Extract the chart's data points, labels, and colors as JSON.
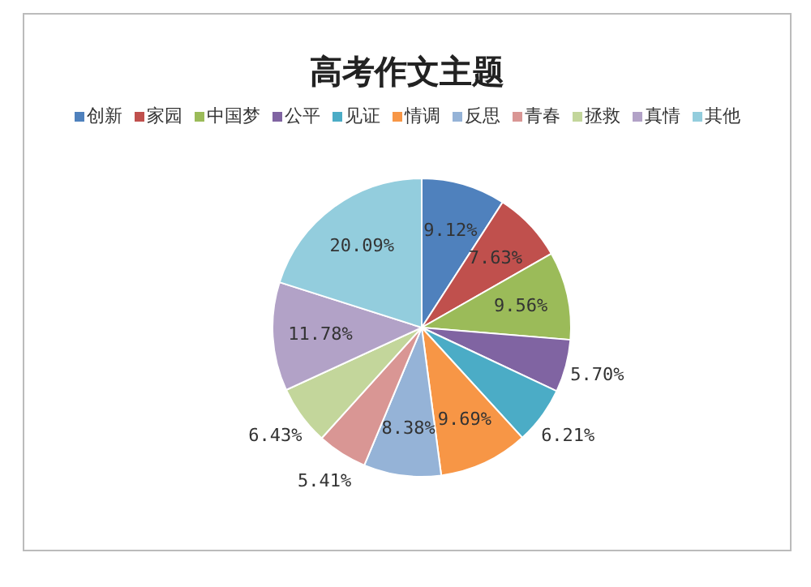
{
  "chart_data": {
    "type": "pie",
    "title": "高考作文主题",
    "categories": [
      "创新",
      "家园",
      "中国梦",
      "公平",
      "见证",
      "情调",
      "反思",
      "青春",
      "拯救",
      "真情",
      "其他"
    ],
    "values": [
      9.12,
      7.63,
      9.56,
      5.7,
      6.21,
      9.69,
      8.38,
      5.41,
      6.43,
      11.78,
      20.09
    ],
    "value_labels": [
      "9.12%",
      "7.63%",
      "9.56%",
      "5.70%",
      "6.21%",
      "9.69%",
      "8.38%",
      "5.41%",
      "6.43%",
      "11.78%",
      "20.09%"
    ],
    "colors": [
      "#4f81bd",
      "#c0504d",
      "#9bbb59",
      "#8064a2",
      "#4bacc6",
      "#f79646",
      "#95b3d7",
      "#d99694",
      "#c3d69b",
      "#b2a2c7",
      "#93cddd"
    ],
    "legend": "top"
  }
}
